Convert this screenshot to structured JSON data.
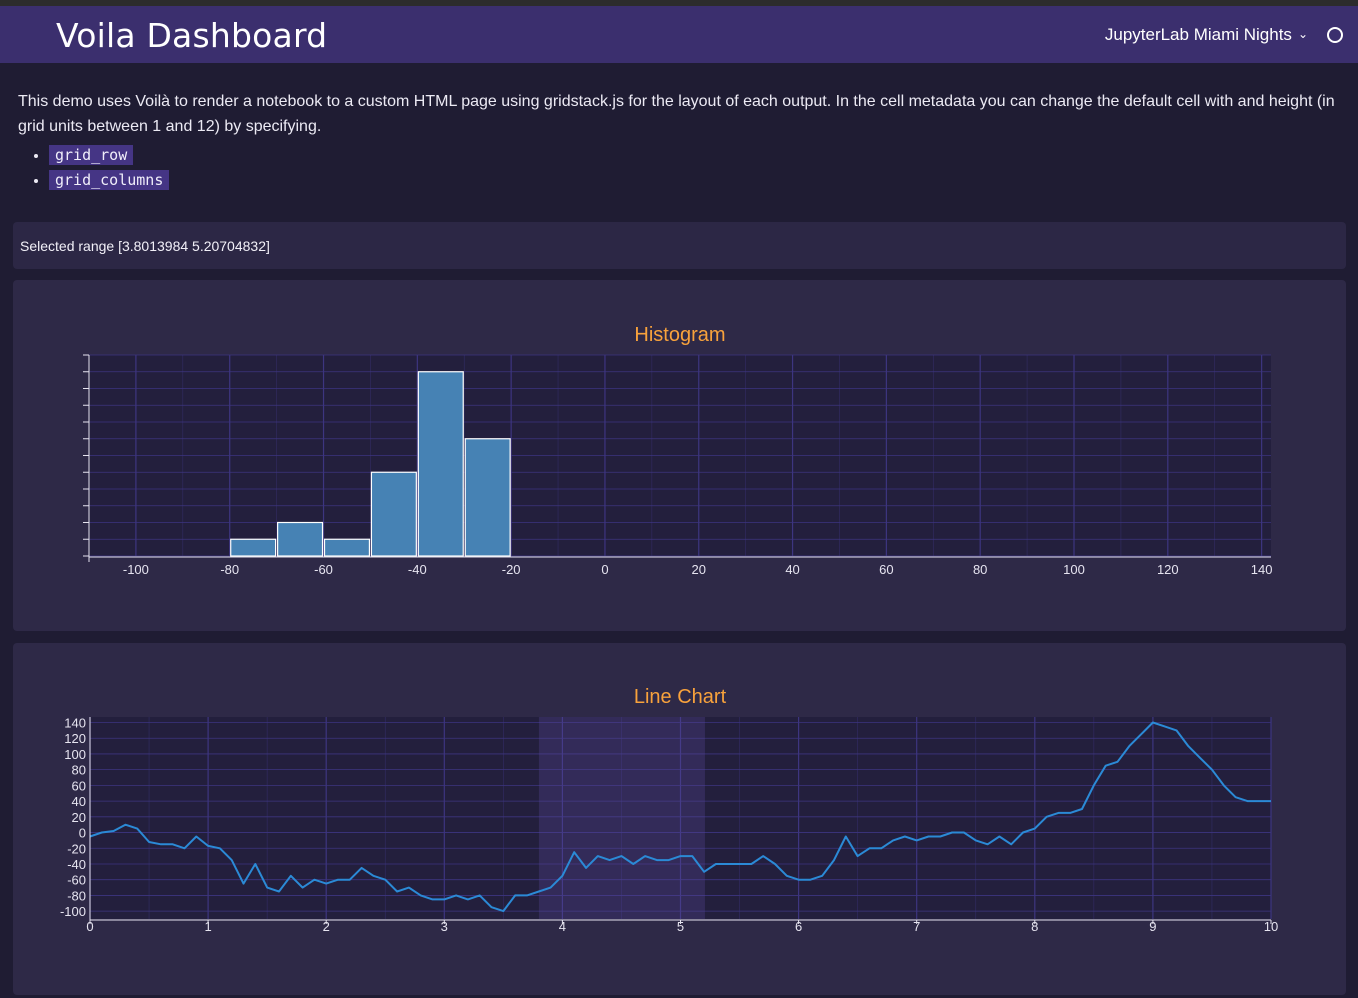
{
  "header": {
    "title": "Voila Dashboard",
    "theme_label": "JupyterLab Miami Nights"
  },
  "intro": {
    "text": "This demo uses Voilà to render a notebook to a custom HTML page using gridstack.js for the layout of each output. In the cell metadata you can change the default cell with and height (in grid units between 1 and 12) by specifying.",
    "items": [
      "grid_row",
      "grid_columns"
    ]
  },
  "range": {
    "text": "Selected range [3.8013984 5.20704832]",
    "values": [
      3.8013984,
      5.20704832
    ]
  },
  "colors": {
    "accent_title": "#f8a23c",
    "bar_fill": "#4682b4",
    "line": "#2b8ad6",
    "header_bg": "#3b2f6e",
    "grid": "#3d3580"
  },
  "chart_data": [
    {
      "type": "bar",
      "title": "Histogram",
      "bin_edges": [
        -80,
        -70,
        -60,
        -50,
        -40,
        -30,
        -20
      ],
      "values": [
        1,
        2,
        1,
        5,
        11,
        7
      ],
      "xlim": [
        -110,
        142
      ],
      "xticks": [
        -100,
        -80,
        -60,
        -40,
        -20,
        0,
        20,
        40,
        60,
        80,
        100,
        120,
        140
      ],
      "ylim": [
        0,
        12
      ],
      "grid": true
    },
    {
      "type": "line",
      "title": "Line Chart",
      "xlim": [
        0,
        10
      ],
      "ylim": [
        -110,
        147
      ],
      "xticks": [
        0,
        1,
        2,
        3,
        4,
        5,
        6,
        7,
        8,
        9,
        10
      ],
      "yticks": [
        140,
        120,
        100,
        80,
        60,
        40,
        20,
        0,
        -20,
        -40,
        -60,
        -80,
        -100
      ],
      "selected_range": [
        3.8013984,
        5.20704832
      ],
      "grid": true,
      "x": [
        0,
        0.1,
        0.2,
        0.3,
        0.4,
        0.5,
        0.6,
        0.7,
        0.8,
        0.9,
        1.0,
        1.1,
        1.2,
        1.3,
        1.4,
        1.5,
        1.6,
        1.7,
        1.8,
        1.9,
        2.0,
        2.1,
        2.2,
        2.3,
        2.4,
        2.5,
        2.6,
        2.7,
        2.8,
        2.9,
        3.0,
        3.1,
        3.2,
        3.3,
        3.4,
        3.5,
        3.6,
        3.7,
        3.8,
        3.9,
        4.0,
        4.1,
        4.2,
        4.3,
        4.4,
        4.5,
        4.6,
        4.7,
        4.8,
        4.9,
        5.0,
        5.1,
        5.2,
        5.3,
        5.4,
        5.5,
        5.6,
        5.7,
        5.8,
        5.9,
        6.0,
        6.1,
        6.2,
        6.3,
        6.4,
        6.5,
        6.6,
        6.7,
        6.8,
        6.9,
        7.0,
        7.1,
        7.2,
        7.3,
        7.4,
        7.5,
        7.6,
        7.7,
        7.8,
        7.9,
        8.0,
        8.1,
        8.2,
        8.3,
        8.4,
        8.5,
        8.6,
        8.7,
        8.8,
        8.9,
        9.0,
        9.1,
        9.2,
        9.3,
        9.4,
        9.5,
        9.6,
        9.7,
        9.8,
        9.9,
        10.0
      ],
      "y": [
        -5,
        0,
        2,
        10,
        5,
        -12,
        -15,
        -15,
        -20,
        -5,
        -17,
        -20,
        -35,
        -65,
        -40,
        -70,
        -75,
        -55,
        -70,
        -60,
        -65,
        -60,
        -60,
        -45,
        -55,
        -60,
        -75,
        -70,
        -80,
        -85,
        -85,
        -80,
        -85,
        -80,
        -95,
        -100,
        -80,
        -80,
        -75,
        -70,
        -55,
        -25,
        -45,
        -30,
        -35,
        -30,
        -40,
        -30,
        -35,
        -35,
        -30,
        -30,
        -50,
        -40,
        -40,
        -40,
        -40,
        -30,
        -40,
        -55,
        -60,
        -60,
        -55,
        -35,
        -5,
        -30,
        -20,
        -20,
        -10,
        -5,
        -10,
        -5,
        -5,
        0,
        0,
        -10,
        -15,
        -5,
        -15,
        0,
        5,
        20,
        25,
        25,
        30,
        60,
        85,
        90,
        110,
        125,
        140,
        135,
        130,
        110,
        95,
        80,
        60,
        45,
        40,
        40,
        40
      ]
    }
  ]
}
